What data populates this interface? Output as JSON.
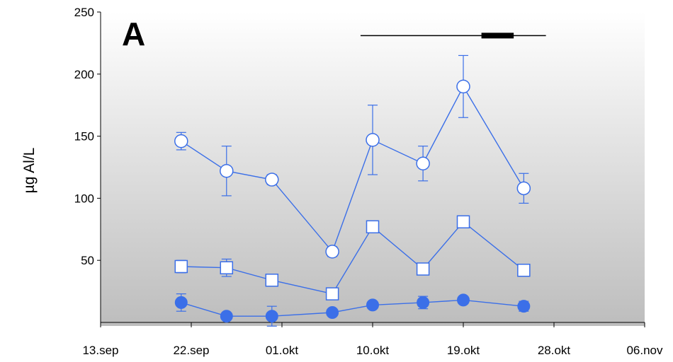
{
  "chart_data": {
    "type": "line",
    "panel_label": "A",
    "ylabel": "µg Al/L",
    "xlabel": "",
    "ylim": [
      0,
      250
    ],
    "yticks": [
      50,
      100,
      150,
      200,
      250
    ],
    "x_tick_labels": [
      "13.sep",
      "22.sep",
      "01.okt",
      "10.okt",
      "19.okt",
      "28.okt",
      "06.nov"
    ],
    "x_tick_days": [
      0,
      9,
      18,
      27,
      36,
      45,
      54
    ],
    "background": "vertical gradient, white at top to grey at bottom",
    "line_color": "#3b6fe8",
    "series": [
      {
        "marker": "open-circle",
        "x": [
          "21.sep",
          "25.sep",
          "30.sep",
          "05.okt",
          "09.okt",
          "14.okt",
          "18.okt",
          "23.okt"
        ],
        "x_days": [
          8,
          12.5,
          17,
          23,
          27,
          32,
          36,
          42
        ],
        "values": [
          146,
          122,
          115,
          57,
          147,
          128,
          190,
          108
        ],
        "err": [
          7,
          20,
          4,
          4,
          28,
          14,
          25,
          12
        ]
      },
      {
        "marker": "open-square",
        "x": [
          "21.sep",
          "25.sep",
          "30.sep",
          "05.okt",
          "09.okt",
          "14.okt",
          "18.okt",
          "23.okt"
        ],
        "x_days": [
          8,
          12.5,
          17,
          23,
          27,
          32,
          36,
          42
        ],
        "values": [
          45,
          44,
          34,
          23,
          77,
          43,
          81,
          42
        ],
        "err": [
          5,
          7,
          2,
          2,
          2,
          2,
          2,
          2
        ]
      },
      {
        "marker": "filled-circle",
        "x": [
          "21.sep",
          "25.sep",
          "30.sep",
          "05.okt",
          "09.okt",
          "14.okt",
          "18.okt",
          "23.okt"
        ],
        "x_days": [
          8,
          12.5,
          17,
          23,
          27,
          32,
          36,
          42
        ],
        "values": [
          16,
          5,
          5,
          8,
          14,
          16,
          18,
          13
        ],
        "err": [
          7,
          1,
          8,
          1,
          2,
          5,
          3,
          4
        ]
      }
    ],
    "timeline_bar": {
      "value": 231,
      "line_x_days": [
        25.8,
        44.2
      ],
      "thick_x_days": [
        37.8,
        41.0
      ]
    }
  }
}
